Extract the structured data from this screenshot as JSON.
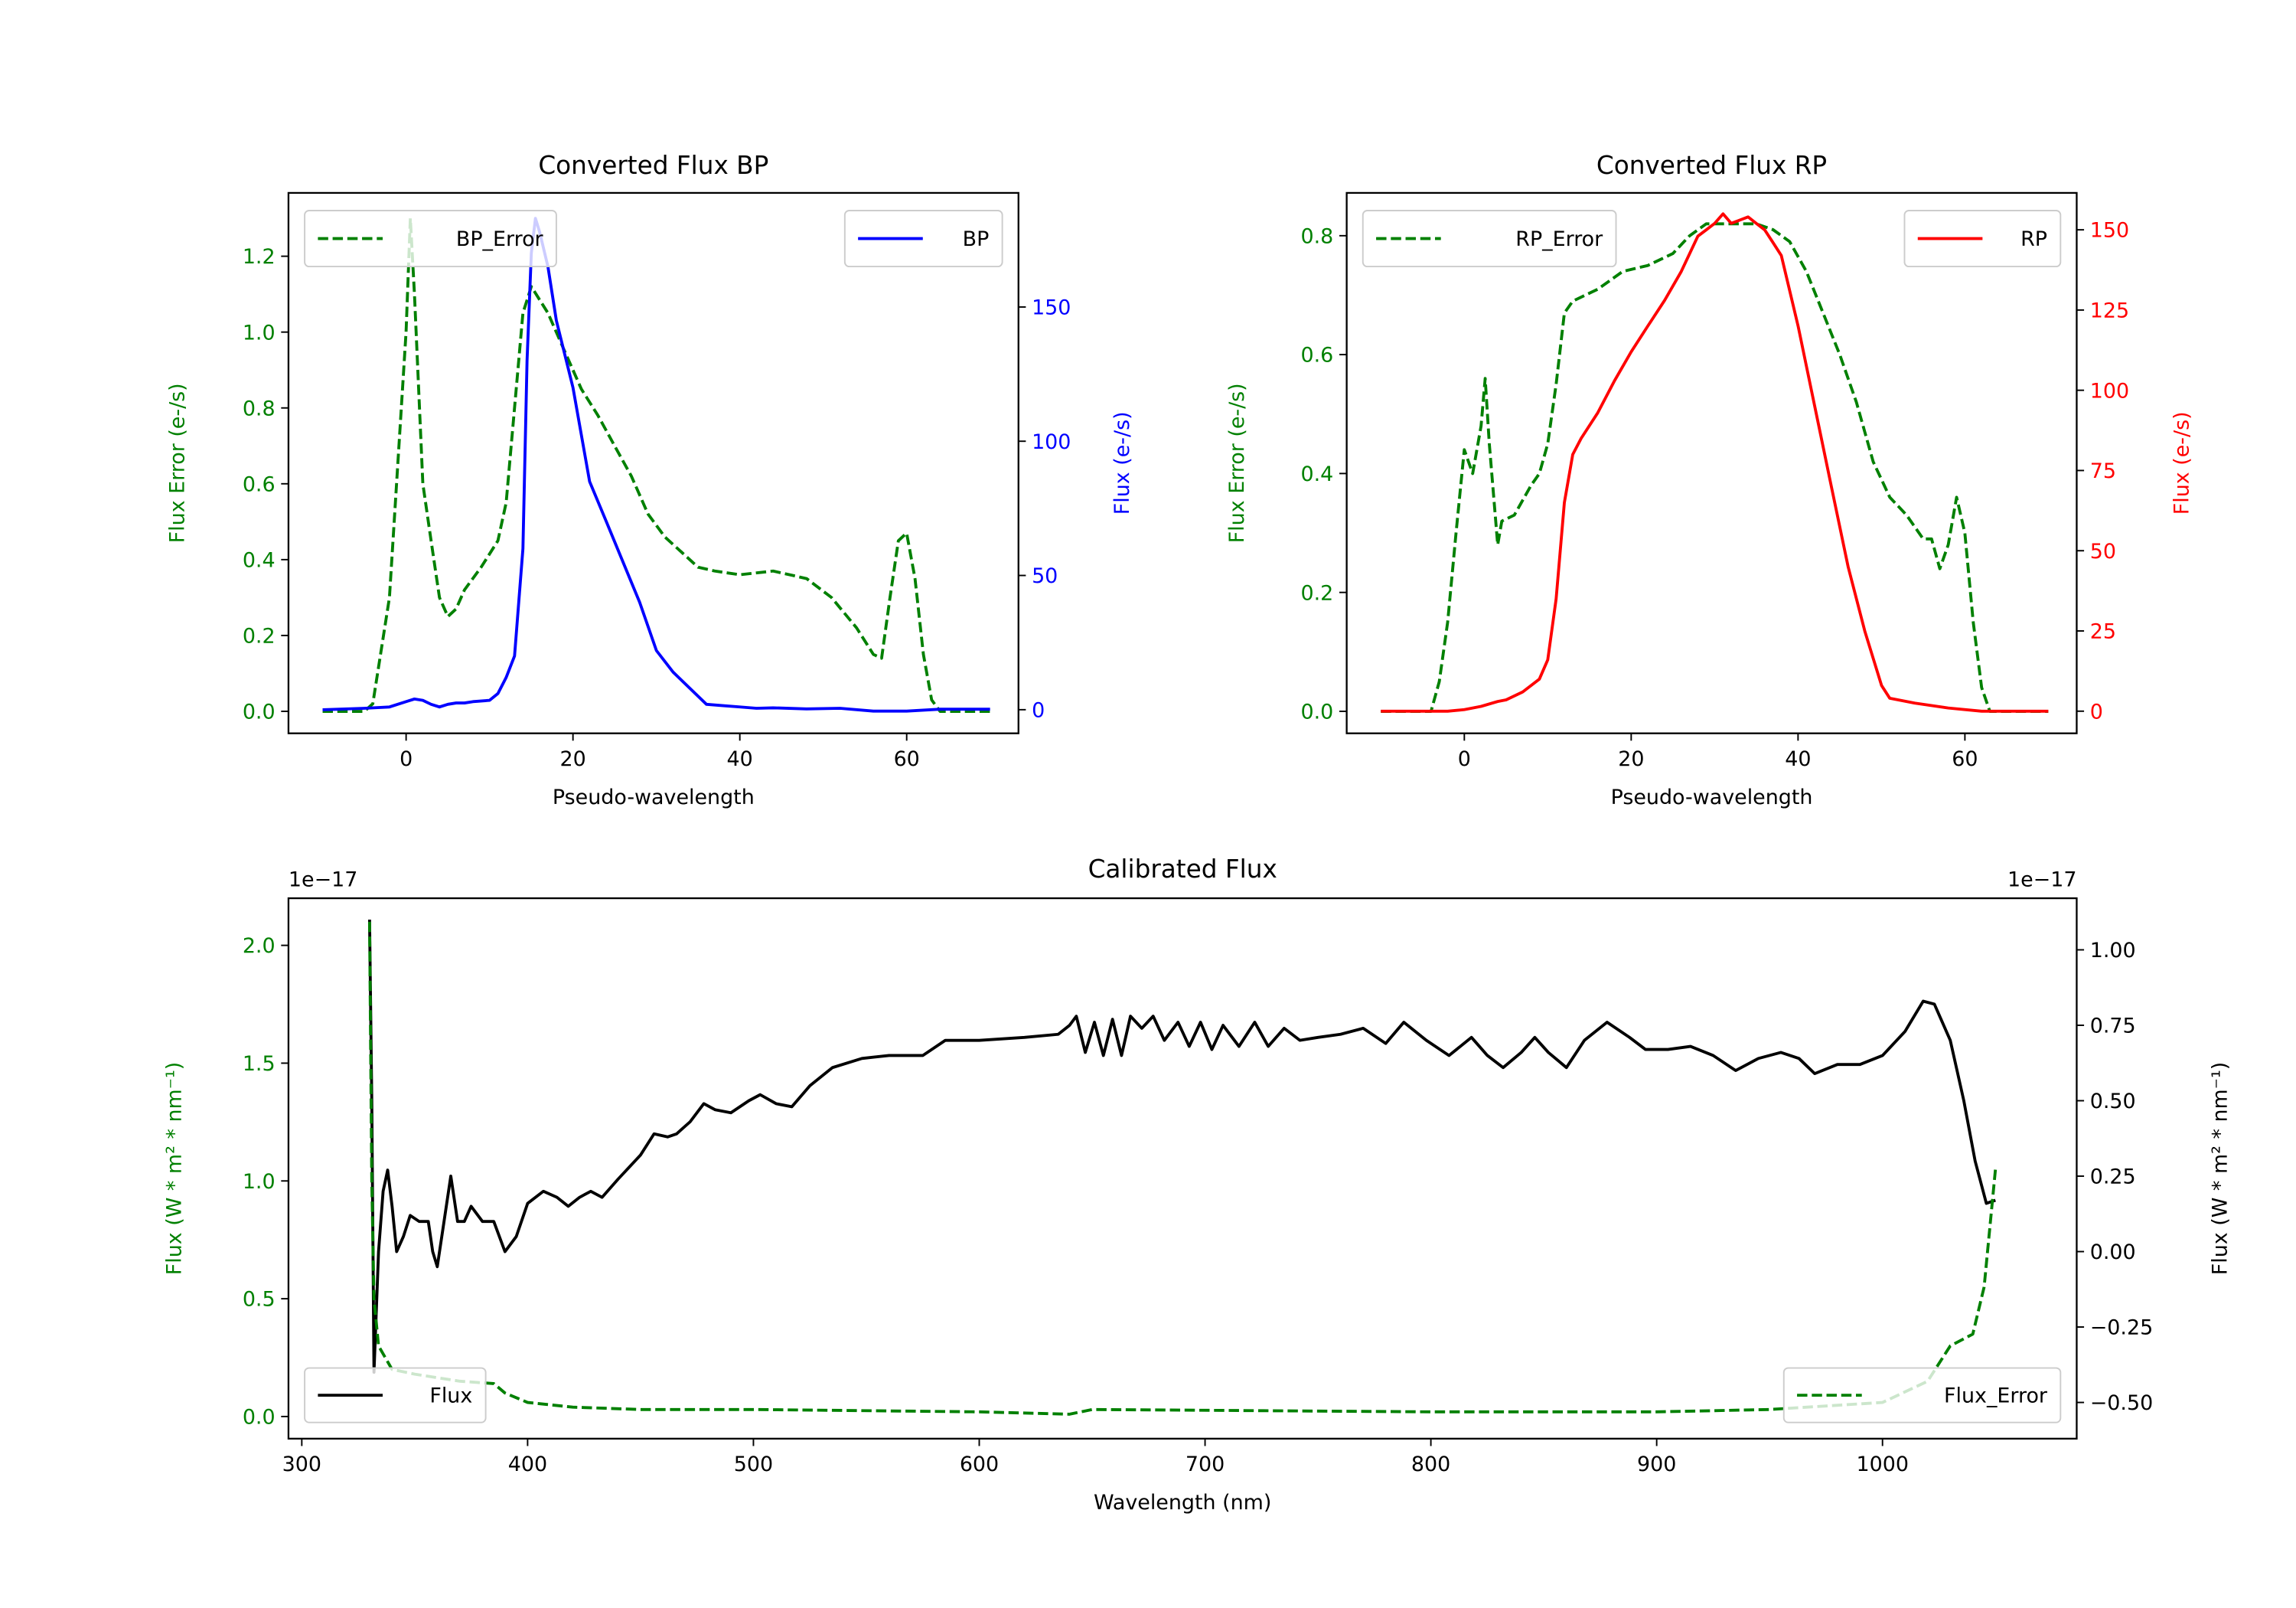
{
  "chart_data": [
    {
      "type": "line",
      "title": "Converted Flux BP",
      "xlabel": "Pseudo-wavelength",
      "ylabel_left": "Flux Error (e-/s)",
      "ylabel_right": "Flux (e-/s)",
      "xlim": [
        -14.1,
        73.4
      ],
      "ylim_left": [
        -0.058,
        1.367
      ],
      "ylim_right": [
        -8.8,
        192.5
      ],
      "xticks": [
        0,
        20,
        40,
        60
      ],
      "xtick_labels": [
        "0",
        "20",
        "40",
        "60"
      ],
      "yticks_left": [
        0.0,
        0.2,
        0.4,
        0.6,
        0.8,
        1.0,
        1.2
      ],
      "ytick_labels_left": [
        "0.0",
        "0.2",
        "0.4",
        "0.6",
        "0.8",
        "1.0",
        "1.2"
      ],
      "yticks_right": [
        0,
        50,
        100,
        150
      ],
      "ytick_labels_right": [
        "0",
        "50",
        "100",
        "150"
      ],
      "left_color": "#008000",
      "right_color": "#0000ff",
      "grid": false,
      "series": [
        {
          "name": "BP_Error",
          "axis": "left",
          "color": "#008000",
          "dashed": true,
          "legend": "top-left",
          "x": [
            -10,
            -5,
            -4,
            -2,
            0,
            0.5,
            1,
            2,
            3,
            4,
            5,
            6,
            7,
            9,
            11,
            12,
            13,
            14,
            15,
            17,
            19,
            21,
            23,
            25,
            27,
            29,
            31,
            33,
            35,
            37,
            40,
            44,
            48,
            51,
            54,
            56,
            57,
            58,
            59,
            60,
            61,
            62,
            63,
            64,
            70
          ],
          "y": [
            0,
            0,
            0.02,
            0.3,
            1.0,
            1.3,
            1.1,
            0.6,
            0.45,
            0.3,
            0.25,
            0.27,
            0.32,
            0.38,
            0.45,
            0.55,
            0.8,
            1.05,
            1.12,
            1.05,
            0.95,
            0.85,
            0.78,
            0.7,
            0.62,
            0.52,
            0.46,
            0.42,
            0.38,
            0.37,
            0.36,
            0.37,
            0.35,
            0.3,
            0.22,
            0.15,
            0.14,
            0.3,
            0.45,
            0.47,
            0.35,
            0.15,
            0.03,
            0,
            0
          ]
        },
        {
          "name": "BP",
          "axis": "right",
          "color": "#0000ff",
          "dashed": false,
          "legend": "top-right",
          "x": [
            -10,
            -5,
            -2,
            0,
            1,
            2,
            3,
            4,
            5,
            6,
            7,
            8,
            10,
            11,
            12,
            13,
            14,
            14.5,
            15,
            15.5,
            16,
            17,
            18,
            20,
            22,
            24,
            26,
            28,
            30,
            32,
            34,
            36,
            38,
            40,
            42,
            44,
            48,
            52,
            56,
            60,
            64,
            70
          ],
          "y": [
            0,
            0.5,
            1,
            3,
            4,
            3.5,
            2,
            1,
            2,
            2.5,
            2.5,
            3,
            3.5,
            6,
            12,
            20,
            60,
            130,
            170,
            183,
            178,
            165,
            145,
            120,
            85,
            70,
            55,
            40,
            22,
            14,
            8,
            2,
            1.5,
            1,
            0.5,
            0.7,
            0.3,
            0.5,
            -0.5,
            -0.5,
            0.2,
            0.2
          ]
        }
      ]
    },
    {
      "type": "line",
      "title": "Converted Flux RP",
      "xlabel": "Pseudo-wavelength",
      "ylabel_left": "Flux Error (e-/s)",
      "ylabel_right": "Flux (e-/s)",
      "xlim": [
        -14.1,
        73.4
      ],
      "ylim_left": [
        -0.037,
        0.872
      ],
      "ylim_right": [
        -6.9,
        161.5
      ],
      "xticks": [
        0,
        20,
        40,
        60
      ],
      "xtick_labels": [
        "0",
        "20",
        "40",
        "60"
      ],
      "yticks_left": [
        0.0,
        0.2,
        0.4,
        0.6,
        0.8
      ],
      "ytick_labels_left": [
        "0.0",
        "0.2",
        "0.4",
        "0.6",
        "0.8"
      ],
      "yticks_right": [
        0,
        25,
        50,
        75,
        100,
        125,
        150
      ],
      "ytick_labels_right": [
        "0",
        "25",
        "50",
        "75",
        "100",
        "125",
        "150"
      ],
      "left_color": "#008000",
      "right_color": "#ff0000",
      "grid": false,
      "series": [
        {
          "name": "RP_Error",
          "axis": "left",
          "color": "#008000",
          "dashed": true,
          "legend": "top-left",
          "x": [
            -10,
            -4,
            -3,
            -2,
            -1,
            0,
            1,
            2,
            2.5,
            3,
            4,
            4.5,
            6,
            8,
            9,
            10,
            11,
            12,
            13,
            16,
            19,
            22,
            25,
            27,
            29,
            31,
            33,
            35,
            37,
            39,
            41,
            43,
            45,
            47,
            49,
            51,
            53,
            55,
            56,
            57,
            58,
            59,
            60,
            61,
            62,
            63,
            70
          ],
          "y": [
            0,
            0,
            0.05,
            0.15,
            0.3,
            0.44,
            0.4,
            0.48,
            0.56,
            0.45,
            0.28,
            0.32,
            0.33,
            0.38,
            0.4,
            0.45,
            0.55,
            0.67,
            0.69,
            0.71,
            0.74,
            0.75,
            0.77,
            0.8,
            0.82,
            0.82,
            0.82,
            0.82,
            0.81,
            0.79,
            0.74,
            0.67,
            0.6,
            0.52,
            0.42,
            0.36,
            0.33,
            0.29,
            0.29,
            0.24,
            0.28,
            0.36,
            0.3,
            0.15,
            0.04,
            0,
            0
          ]
        },
        {
          "name": "RP",
          "axis": "right",
          "color": "#ff0000",
          "dashed": false,
          "legend": "top-right",
          "x": [
            -10,
            -2,
            0,
            2,
            4,
            5,
            7,
            9,
            10,
            11,
            12,
            13,
            14,
            16,
            18,
            20,
            22,
            24,
            26,
            28,
            29,
            30,
            31,
            32,
            33,
            34,
            35,
            36,
            37,
            38,
            40,
            42,
            44,
            46,
            48,
            50,
            51,
            54,
            58,
            62,
            70
          ],
          "y": [
            0,
            0,
            0.5,
            1.5,
            3,
            3.5,
            6,
            10,
            16,
            35,
            65,
            80,
            85,
            93,
            103,
            112,
            120,
            128,
            137,
            148,
            150,
            152,
            155,
            152,
            153,
            154,
            152,
            150,
            146,
            142,
            120,
            95,
            70,
            45,
            25,
            8,
            4,
            2.5,
            1,
            0,
            0
          ]
        }
      ]
    },
    {
      "type": "line",
      "title": "Calibrated Flux",
      "xlabel": "Wavelength (nm)",
      "ylabel_left": "Flux (W * m² * nm⁻¹)",
      "ylabel_right": "Flux (W * m² * nm⁻¹)",
      "offset_left": "1e−17",
      "offset_right": "1e−17",
      "xlim": [
        294.1,
        1086
      ],
      "ylim_left": [
        -0.094,
        2.2
      ],
      "ylim_right": [
        -0.62,
        1.171
      ],
      "xticks": [
        300,
        400,
        500,
        600,
        700,
        800,
        900,
        1000
      ],
      "xtick_labels": [
        "300",
        "400",
        "500",
        "600",
        "700",
        "800",
        "900",
        "1000"
      ],
      "yticks_left": [
        0.0,
        0.5,
        1.0,
        1.5,
        2.0
      ],
      "ytick_labels_left": [
        "0.0",
        "0.5",
        "1.0",
        "1.5",
        "2.0"
      ],
      "yticks_right": [
        -0.5,
        -0.25,
        0.0,
        0.25,
        0.5,
        0.75,
        1.0
      ],
      "ytick_labels_right": [
        "−0.50",
        "−0.25",
        "0.00",
        "0.25",
        "0.50",
        "0.75",
        "1.00"
      ],
      "left_color": "#008000",
      "right_color": "#000000",
      "grid": false,
      "series": [
        {
          "name": "Flux",
          "axis": "right",
          "color": "#000000",
          "dashed": false,
          "legend": "bottom-left",
          "x": [
            330,
            331,
            332,
            334,
            336,
            338,
            340,
            342,
            345,
            348,
            352,
            356,
            358,
            360,
            363,
            366,
            369,
            372,
            375,
            380,
            385,
            390,
            395,
            400,
            407,
            413,
            418,
            423,
            428,
            433,
            440,
            450,
            456,
            462,
            466,
            472,
            478,
            483,
            490,
            498,
            503,
            510,
            517,
            525,
            535,
            548,
            560,
            575,
            585,
            600,
            620,
            635,
            640,
            643,
            647,
            651,
            655,
            659,
            663,
            667,
            672,
            677,
            682,
            688,
            693,
            698,
            703,
            708,
            715,
            722,
            728,
            735,
            742,
            750,
            760,
            770,
            780,
            788,
            798,
            808,
            818,
            825,
            832,
            840,
            846,
            852,
            860,
            868,
            878,
            888,
            895,
            905,
            915,
            925,
            935,
            945,
            955,
            963,
            970,
            980,
            990,
            1000,
            1010,
            1018,
            1023,
            1030,
            1036,
            1041,
            1046,
            1050
          ],
          "y": [
            1.1,
            0.5,
            -0.4,
            0.0,
            0.2,
            0.27,
            0.15,
            0.0,
            0.05,
            0.12,
            0.1,
            0.1,
            0.0,
            -0.05,
            0.1,
            0.25,
            0.1,
            0.1,
            0.15,
            0.1,
            0.1,
            0.0,
            0.05,
            0.16,
            0.2,
            0.18,
            0.15,
            0.18,
            0.2,
            0.18,
            0.24,
            0.32,
            0.39,
            0.38,
            0.39,
            0.43,
            0.49,
            0.47,
            0.46,
            0.5,
            0.52,
            0.49,
            0.48,
            0.55,
            0.61,
            0.64,
            0.65,
            0.65,
            0.7,
            0.7,
            0.71,
            0.72,
            0.75,
            0.78,
            0.66,
            0.76,
            0.65,
            0.77,
            0.65,
            0.78,
            0.74,
            0.78,
            0.7,
            0.76,
            0.68,
            0.76,
            0.67,
            0.75,
            0.68,
            0.76,
            0.68,
            0.74,
            0.7,
            0.71,
            0.72,
            0.74,
            0.69,
            0.76,
            0.7,
            0.65,
            0.71,
            0.65,
            0.61,
            0.66,
            0.71,
            0.66,
            0.61,
            0.7,
            0.76,
            0.71,
            0.67,
            0.67,
            0.68,
            0.65,
            0.6,
            0.64,
            0.66,
            0.64,
            0.59,
            0.62,
            0.62,
            0.65,
            0.73,
            0.83,
            0.82,
            0.7,
            0.5,
            0.3,
            0.16,
            0.17
          ]
        },
        {
          "name": "Flux_Error",
          "axis": "left",
          "color": "#008000",
          "dashed": true,
          "legend": "bottom-right",
          "x": [
            330,
            331,
            332,
            334,
            340,
            350,
            370,
            385,
            390,
            400,
            420,
            450,
            500,
            600,
            640,
            650,
            800,
            900,
            950,
            1000,
            1020,
            1030,
            1040,
            1045,
            1050
          ],
          "y": [
            2.1,
            1.0,
            0.5,
            0.3,
            0.2,
            0.18,
            0.15,
            0.14,
            0.1,
            0.06,
            0.04,
            0.03,
            0.03,
            0.02,
            0.01,
            0.03,
            0.02,
            0.02,
            0.03,
            0.06,
            0.15,
            0.3,
            0.35,
            0.55,
            1.05
          ]
        }
      ]
    }
  ]
}
